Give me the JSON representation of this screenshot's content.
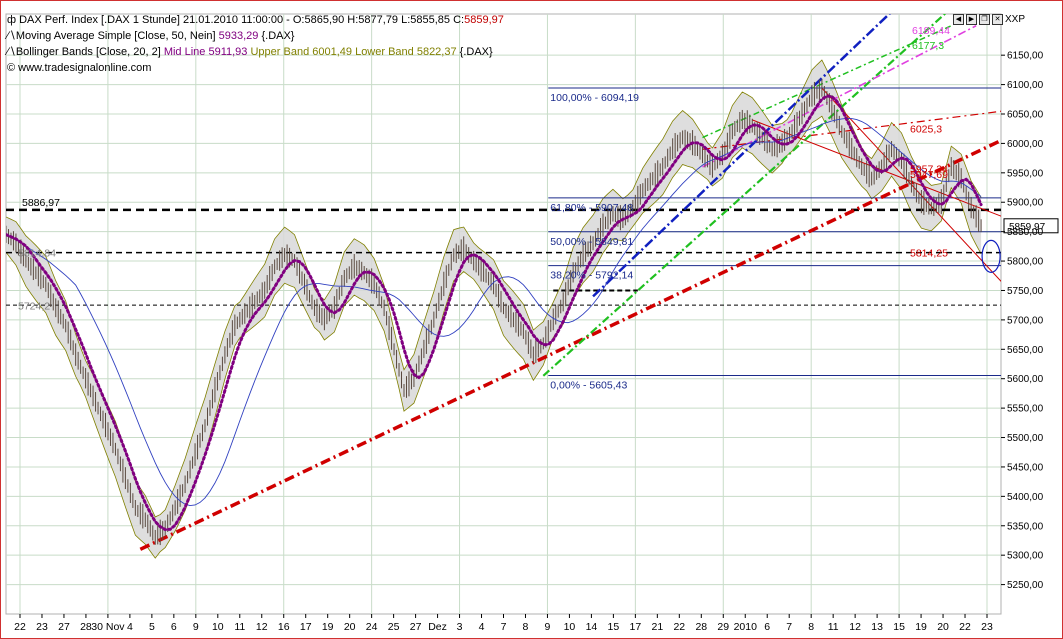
{
  "legend": {
    "line1": "DAX Perf. Index [.DAX  1 Stunde] 21.01.2010 11:00:00 - O:5865,90 H:5877,79 L:5855,85 C:",
    "line1_close": "5859,97",
    "line2": "Moving Average Simple [Close, 50, Nein] ",
    "line2_value": "5933,29",
    "line2_suffix": " {.DAX}",
    "line3_prefix": "Bollinger Bands [Close, 20, 2] ",
    "line3_mid": "Mid Line 5911,93",
    "line3_upper": " Upper Band 6001,49",
    "line3_lower": " Lower Band 5822,37",
    "line3_suffix": " {.DAX}",
    "line4": "© www.tradesignalonline.com"
  },
  "axis_title": "XXP",
  "current_price_label": "5859,97",
  "colors": {
    "price": "#5a4a40",
    "bollinger_fill": "#d8d8d8",
    "bollinger_edge": "#808000",
    "mid_line": "#800080",
    "sma": "#3040c0",
    "fib": "#1a2a8a",
    "red_trend": "#d00000",
    "green_trend": "#20c020",
    "blue_trend": "#1020c0",
    "magenta_trend": "#e040e0",
    "grid": "#c8dcc8"
  },
  "chart_data": {
    "type": "line",
    "title": "DAX Perf. Index [.DAX  1 Stunde]",
    "ylim": [
      5200,
      6220
    ],
    "y_ticks": [
      5250,
      5300,
      5350,
      5400,
      5450,
      5500,
      5550,
      5600,
      5650,
      5700,
      5750,
      5800,
      5850,
      5900,
      5950,
      6000,
      6050,
      6100,
      6150
    ],
    "y_tick_labels": [
      "5250,00",
      "5300,00",
      "5350,00",
      "5400,00",
      "5450,00",
      "5500,00",
      "5550,00",
      "5600,00",
      "5650,00",
      "5700,00",
      "5750,00",
      "5800,00",
      "5850,00",
      "5900,00",
      "5950,00",
      "6000,00",
      "6050,00",
      "6100,00",
      "6150,00"
    ],
    "x_tick_labels": [
      "22",
      "23",
      "27",
      "28",
      "30 Nov",
      "4",
      "5",
      "6",
      "9",
      "10",
      "11",
      "12",
      "16",
      "17",
      "19",
      "20",
      "24",
      "25",
      "27",
      "Dez",
      "3",
      "4",
      "7",
      "8",
      "9",
      "10",
      "14",
      "15",
      "17",
      "21",
      "22",
      "28",
      "29",
      "2010",
      "6",
      "7",
      "8",
      "11",
      "12",
      "13",
      "15",
      "19",
      "20",
      "22",
      "23"
    ],
    "grid": true,
    "price_path": [
      [
        0,
        5845
      ],
      [
        2,
        5830
      ],
      [
        4,
        5800
      ],
      [
        6,
        5780
      ],
      [
        8,
        5760
      ],
      [
        10,
        5720
      ],
      [
        12,
        5690
      ],
      [
        14,
        5640
      ],
      [
        16,
        5600
      ],
      [
        18,
        5560
      ],
      [
        20,
        5520
      ],
      [
        22,
        5480
      ],
      [
        24,
        5430
      ],
      [
        26,
        5380
      ],
      [
        28,
        5360
      ],
      [
        30,
        5330
      ],
      [
        32,
        5345
      ],
      [
        34,
        5380
      ],
      [
        36,
        5420
      ],
      [
        38,
        5470
      ],
      [
        40,
        5520
      ],
      [
        42,
        5580
      ],
      [
        44,
        5640
      ],
      [
        46,
        5690
      ],
      [
        48,
        5710
      ],
      [
        50,
        5730
      ],
      [
        52,
        5750
      ],
      [
        54,
        5790
      ],
      [
        56,
        5810
      ],
      [
        58,
        5800
      ],
      [
        60,
        5760
      ],
      [
        62,
        5720
      ],
      [
        64,
        5700
      ],
      [
        66,
        5720
      ],
      [
        68,
        5770
      ],
      [
        70,
        5790
      ],
      [
        72,
        5780
      ],
      [
        74,
        5760
      ],
      [
        76,
        5720
      ],
      [
        78,
        5650
      ],
      [
        80,
        5580
      ],
      [
        82,
        5600
      ],
      [
        84,
        5650
      ],
      [
        86,
        5700
      ],
      [
        88,
        5760
      ],
      [
        90,
        5810
      ],
      [
        92,
        5820
      ],
      [
        94,
        5800
      ],
      [
        96,
        5780
      ],
      [
        98,
        5760
      ],
      [
        100,
        5720
      ],
      [
        102,
        5700
      ],
      [
        104,
        5680
      ],
      [
        106,
        5640
      ],
      [
        108,
        5660
      ],
      [
        110,
        5700
      ],
      [
        112,
        5730
      ],
      [
        114,
        5780
      ],
      [
        116,
        5810
      ],
      [
        118,
        5830
      ],
      [
        120,
        5860
      ],
      [
        122,
        5880
      ],
      [
        124,
        5870
      ],
      [
        126,
        5890
      ],
      [
        128,
        5920
      ],
      [
        130,
        5940
      ],
      [
        132,
        5960
      ],
      [
        134,
        5990
      ],
      [
        136,
        6010
      ],
      [
        138,
        6000
      ],
      [
        140,
        5980
      ],
      [
        142,
        5960
      ],
      [
        144,
        5980
      ],
      [
        146,
        6020
      ],
      [
        148,
        6040
      ],
      [
        150,
        6030
      ],
      [
        152,
        6010
      ],
      [
        154,
        5990
      ],
      [
        156,
        6000
      ],
      [
        158,
        6020
      ],
      [
        160,
        6050
      ],
      [
        162,
        6080
      ],
      [
        164,
        6094
      ],
      [
        166,
        6060
      ],
      [
        168,
        6020
      ],
      [
        170,
        5990
      ],
      [
        172,
        5960
      ],
      [
        174,
        5940
      ],
      [
        176,
        5960
      ],
      [
        178,
        5990
      ],
      [
        180,
        5970
      ],
      [
        182,
        5930
      ],
      [
        184,
        5900
      ],
      [
        186,
        5890
      ],
      [
        188,
        5900
      ],
      [
        190,
        5960
      ],
      [
        192,
        5940
      ],
      [
        194,
        5890
      ],
      [
        196,
        5860
      ]
    ],
    "horizontal_levels": [
      {
        "value": 5886.97,
        "label": "5886,97",
        "style": "dashed-bold"
      },
      {
        "value": 5814.25,
        "style": "dashed"
      },
      {
        "value": 5750,
        "style": "dashed-short"
      },
      {
        "value": 5725,
        "style": "dashed-thin"
      }
    ],
    "fibonacci": [
      {
        "value": 6094.19,
        "label": "100,00% - 6094,19"
      },
      {
        "value": 5907.48,
        "label": "61,80% - 5907,48"
      },
      {
        "value": 5849.81,
        "label": "50,00% - 5849,81"
      },
      {
        "value": 5792.14,
        "label": "38,20% - 5792,14"
      },
      {
        "value": 5605.43,
        "label": "0,00% - 5605,43"
      }
    ],
    "annotations": [
      {
        "label": "6025,3",
        "value": 6025.3,
        "color": "#d00000"
      },
      {
        "label": "5957,24",
        "value": 5957.24,
        "color": "#d00000"
      },
      {
        "label": "5947,69",
        "value": 5947.69,
        "color": "#d00000"
      },
      {
        "label": "5814,25",
        "value": 5814.25,
        "color": "#d00000"
      },
      {
        "label": "6189,44",
        "value": 6189.44,
        "color": "#e040e0"
      },
      {
        "label": "6177,3",
        "value": 6177.3,
        "color": "#20c020"
      },
      {
        "label": "5814,84",
        "value": 5814.84,
        "color": "#808080"
      },
      {
        "label": "5724,2",
        "value": 5724.2,
        "color": "#808080"
      }
    ]
  }
}
